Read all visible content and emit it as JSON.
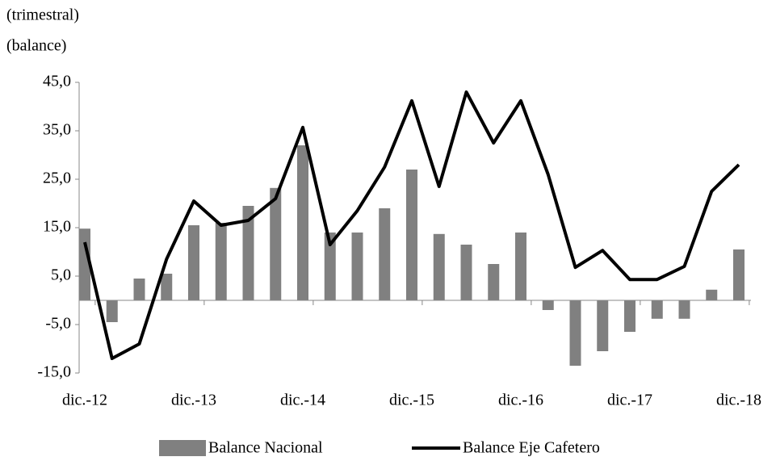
{
  "chart_data": {
    "type": "bar_line",
    "annotations": [
      "(trimestral)",
      "(balance)"
    ],
    "categories": [
      "dic.-12",
      null,
      null,
      null,
      "dic.-13",
      null,
      null,
      null,
      "dic.-14",
      null,
      null,
      null,
      "dic.-15",
      null,
      null,
      null,
      "dic.-16",
      null,
      null,
      null,
      "dic.-17",
      null,
      null,
      null,
      "dic.-18"
    ],
    "series": [
      {
        "name": "Balance Nacional",
        "type": "bar",
        "color": "#808080",
        "values": [
          14.8,
          -4.5,
          4.5,
          5.5,
          15.5,
          16,
          19.5,
          23.2,
          32,
          14,
          14,
          19,
          27,
          13.7,
          11.5,
          7.5,
          14,
          -2,
          -13.5,
          -10.5,
          -6.5,
          -3.8,
          -3.8,
          2.2,
          10.5
        ]
      },
      {
        "name": "Balance Eje Cafetero",
        "type": "line",
        "color": "#000000",
        "values": [
          12,
          -12,
          -9,
          8.5,
          20.5,
          15.5,
          16.5,
          21,
          35.7,
          11.5,
          18.5,
          27.5,
          41.2,
          23.5,
          43,
          32.5,
          41.2,
          26,
          6.8,
          10.3,
          4.3,
          4.3,
          7,
          22.5,
          28
        ]
      }
    ],
    "ylim": [
      -15,
      45
    ],
    "yticks": [
      {
        "value": -15,
        "label": "-15,0"
      },
      {
        "value": -5,
        "label": "-5,0"
      },
      {
        "value": 5,
        "label": "5,0"
      },
      {
        "value": 15,
        "label": "15,0"
      },
      {
        "value": 25,
        "label": "25,0"
      },
      {
        "value": 35,
        "label": "35,0"
      },
      {
        "value": 45,
        "label": "45,0"
      }
    ],
    "grid": false,
    "legend": "bottom"
  }
}
